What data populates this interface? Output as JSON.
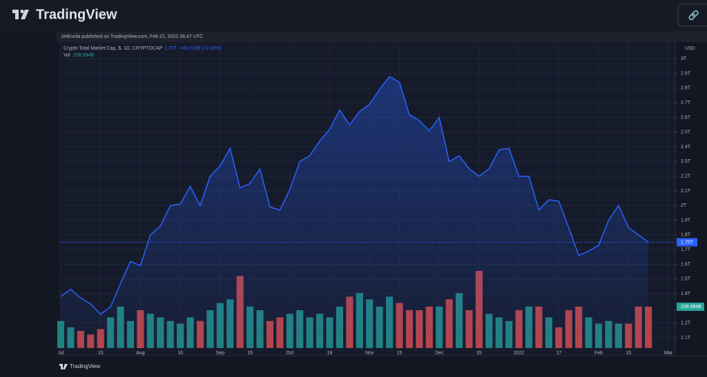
{
  "header": {
    "brand": "TradingView",
    "link_icon": "🔗"
  },
  "chart_data": {
    "type": "line",
    "publisher": "JetEncila published on TradingView.com, Feb 21, 2022 06:47 UTC",
    "symbol": "Crypto Total Market Cap, $, 1D, CRYPTOCAP",
    "last": "1.75T",
    "change": "+48.215B (+2.83%)",
    "volume_name": "Vol",
    "volume_last": "228.994B",
    "currency": "USD",
    "footer_brand": "TradingView",
    "color": "#2962ff",
    "categories": [
      "Jul",
      null,
      null,
      null,
      "15",
      null,
      null,
      null,
      "Aug",
      null,
      null,
      null,
      "16",
      null,
      null,
      null,
      "Sep",
      null,
      null,
      "15",
      null,
      null,
      null,
      "Oct",
      null,
      null,
      null,
      "18",
      null,
      null,
      null,
      "Nov",
      null,
      null,
      "15",
      null,
      null,
      null,
      "Dec",
      null,
      null,
      null,
      "15",
      null,
      null,
      null,
      "2022",
      null,
      null,
      null,
      "17",
      null,
      null,
      null,
      "Feb",
      null,
      null,
      "15",
      null,
      null,
      null,
      "Mar"
    ],
    "values": [
      1.38,
      1.43,
      1.37,
      1.33,
      1.26,
      1.31,
      1.47,
      1.62,
      1.59,
      1.8,
      1.86,
      2.0,
      2.01,
      2.13,
      2.0,
      2.2,
      2.27,
      2.39,
      2.12,
      2.15,
      2.25,
      1.99,
      1.97,
      2.11,
      2.3,
      2.34,
      2.44,
      2.52,
      2.65,
      2.55,
      2.64,
      2.69,
      2.79,
      2.88,
      2.84,
      2.62,
      2.58,
      2.51,
      2.6,
      2.3,
      2.34,
      2.25,
      2.2,
      2.25,
      2.38,
      2.39,
      2.2,
      2.2,
      1.97,
      2.04,
      2.03,
      1.85,
      1.66,
      1.69,
      1.73,
      1.9,
      2.0,
      1.85,
      1.8,
      1.75,
      null,
      null
    ],
    "volume": {
      "up_color": "#26a69a",
      "down_color": "#ef5350",
      "values": [
        150,
        115,
        95,
        75,
        105,
        170,
        230,
        150,
        210,
        190,
        170,
        150,
        135,
        170,
        150,
        210,
        250,
        270,
        400,
        230,
        210,
        150,
        170,
        190,
        210,
        170,
        190,
        170,
        230,
        285,
        305,
        270,
        230,
        285,
        250,
        210,
        210,
        230,
        230,
        270,
        305,
        210,
        428,
        190,
        170,
        150,
        210,
        230,
        230,
        170,
        115,
        210,
        230,
        170,
        135,
        150,
        135,
        135,
        230,
        228.994,
        null,
        null
      ]
    },
    "ylim": [
      1.02,
      3.1
    ],
    "yticks": [
      {
        "value": 1.1,
        "label": "1.1T"
      },
      {
        "value": 1.2,
        "label": "1.2T"
      },
      {
        "value": 1.4,
        "label": "1.4T"
      },
      {
        "value": 1.5,
        "label": "1.5T"
      },
      {
        "value": 1.6,
        "label": "1.6T"
      },
      {
        "value": 1.7,
        "label": "1.7T"
      },
      {
        "value": 1.8,
        "label": "1.8T"
      },
      {
        "value": 1.9,
        "label": "1.9T"
      },
      {
        "value": 2,
        "label": "2T"
      },
      {
        "value": 2.1,
        "label": "2.1T"
      },
      {
        "value": 2.2,
        "label": "2.2T"
      },
      {
        "value": 2.3,
        "label": "2.3T"
      },
      {
        "value": 2.4,
        "label": "2.4T"
      },
      {
        "value": 2.5,
        "label": "2.5T"
      },
      {
        "value": 2.6,
        "label": "2.6T"
      },
      {
        "value": 2.7,
        "label": "2.7T"
      },
      {
        "value": 2.8,
        "label": "2.8T"
      },
      {
        "value": 2.9,
        "label": "2.9T"
      },
      {
        "value": 3,
        "label": "3T"
      }
    ],
    "grid": true
  }
}
